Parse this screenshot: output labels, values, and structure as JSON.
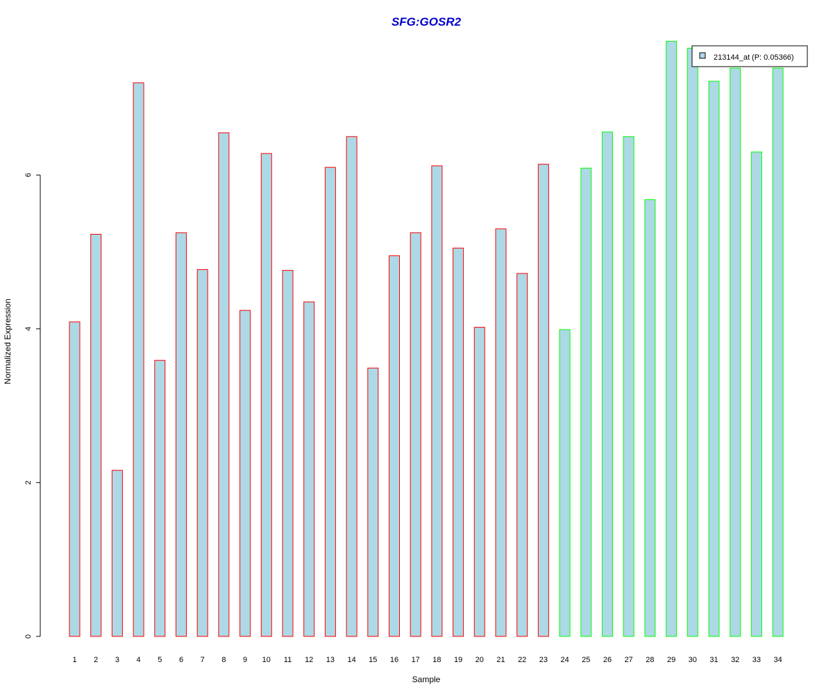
{
  "chart_data": {
    "type": "bar",
    "title": "SFG:GOSR2",
    "xlabel": "Sample",
    "ylabel": "Normalized Expression",
    "ylim": [
      0,
      7.8
    ],
    "yticks": [
      0,
      2,
      4,
      6
    ],
    "ytick_labels": [
      "0",
      "2",
      "4",
      "6"
    ],
    "categories": [
      "1",
      "2",
      "3",
      "4",
      "5",
      "6",
      "7",
      "8",
      "9",
      "10",
      "11",
      "12",
      "13",
      "14",
      "15",
      "16",
      "17",
      "18",
      "19",
      "20",
      "21",
      "22",
      "23",
      "24",
      "25",
      "26",
      "27",
      "28",
      "29",
      "30",
      "31",
      "32",
      "33",
      "34"
    ],
    "series": [
      {
        "name": "213144_at (P: 0.05366)",
        "values": [
          4.09,
          5.23,
          2.16,
          7.2,
          3.59,
          5.25,
          4.77,
          6.55,
          4.24,
          6.28,
          4.76,
          4.35,
          6.1,
          6.5,
          3.49,
          4.95,
          5.25,
          6.12,
          5.05,
          4.02,
          5.3,
          4.72,
          6.14,
          3.99,
          6.09,
          6.56,
          6.5,
          5.68,
          7.74,
          7.65,
          7.22,
          7.39,
          6.3,
          7.39
        ]
      }
    ],
    "bar_fill": "#add8e6",
    "bar_outline_colors": [
      "#ff0000",
      "#ff0000",
      "#ff0000",
      "#ff0000",
      "#ff0000",
      "#ff0000",
      "#ff0000",
      "#ff0000",
      "#ff0000",
      "#ff0000",
      "#ff0000",
      "#ff0000",
      "#ff0000",
      "#ff0000",
      "#ff0000",
      "#ff0000",
      "#ff0000",
      "#ff0000",
      "#ff0000",
      "#ff0000",
      "#ff0000",
      "#ff0000",
      "#ff0000",
      "#00ff00",
      "#00ff00",
      "#00ff00",
      "#00ff00",
      "#00ff00",
      "#00ff00",
      "#00ff00",
      "#00ff00",
      "#00ff00",
      "#00ff00",
      "#00ff00"
    ],
    "title_color": "#0000cc",
    "grid": false,
    "legend_position": "top-right"
  }
}
